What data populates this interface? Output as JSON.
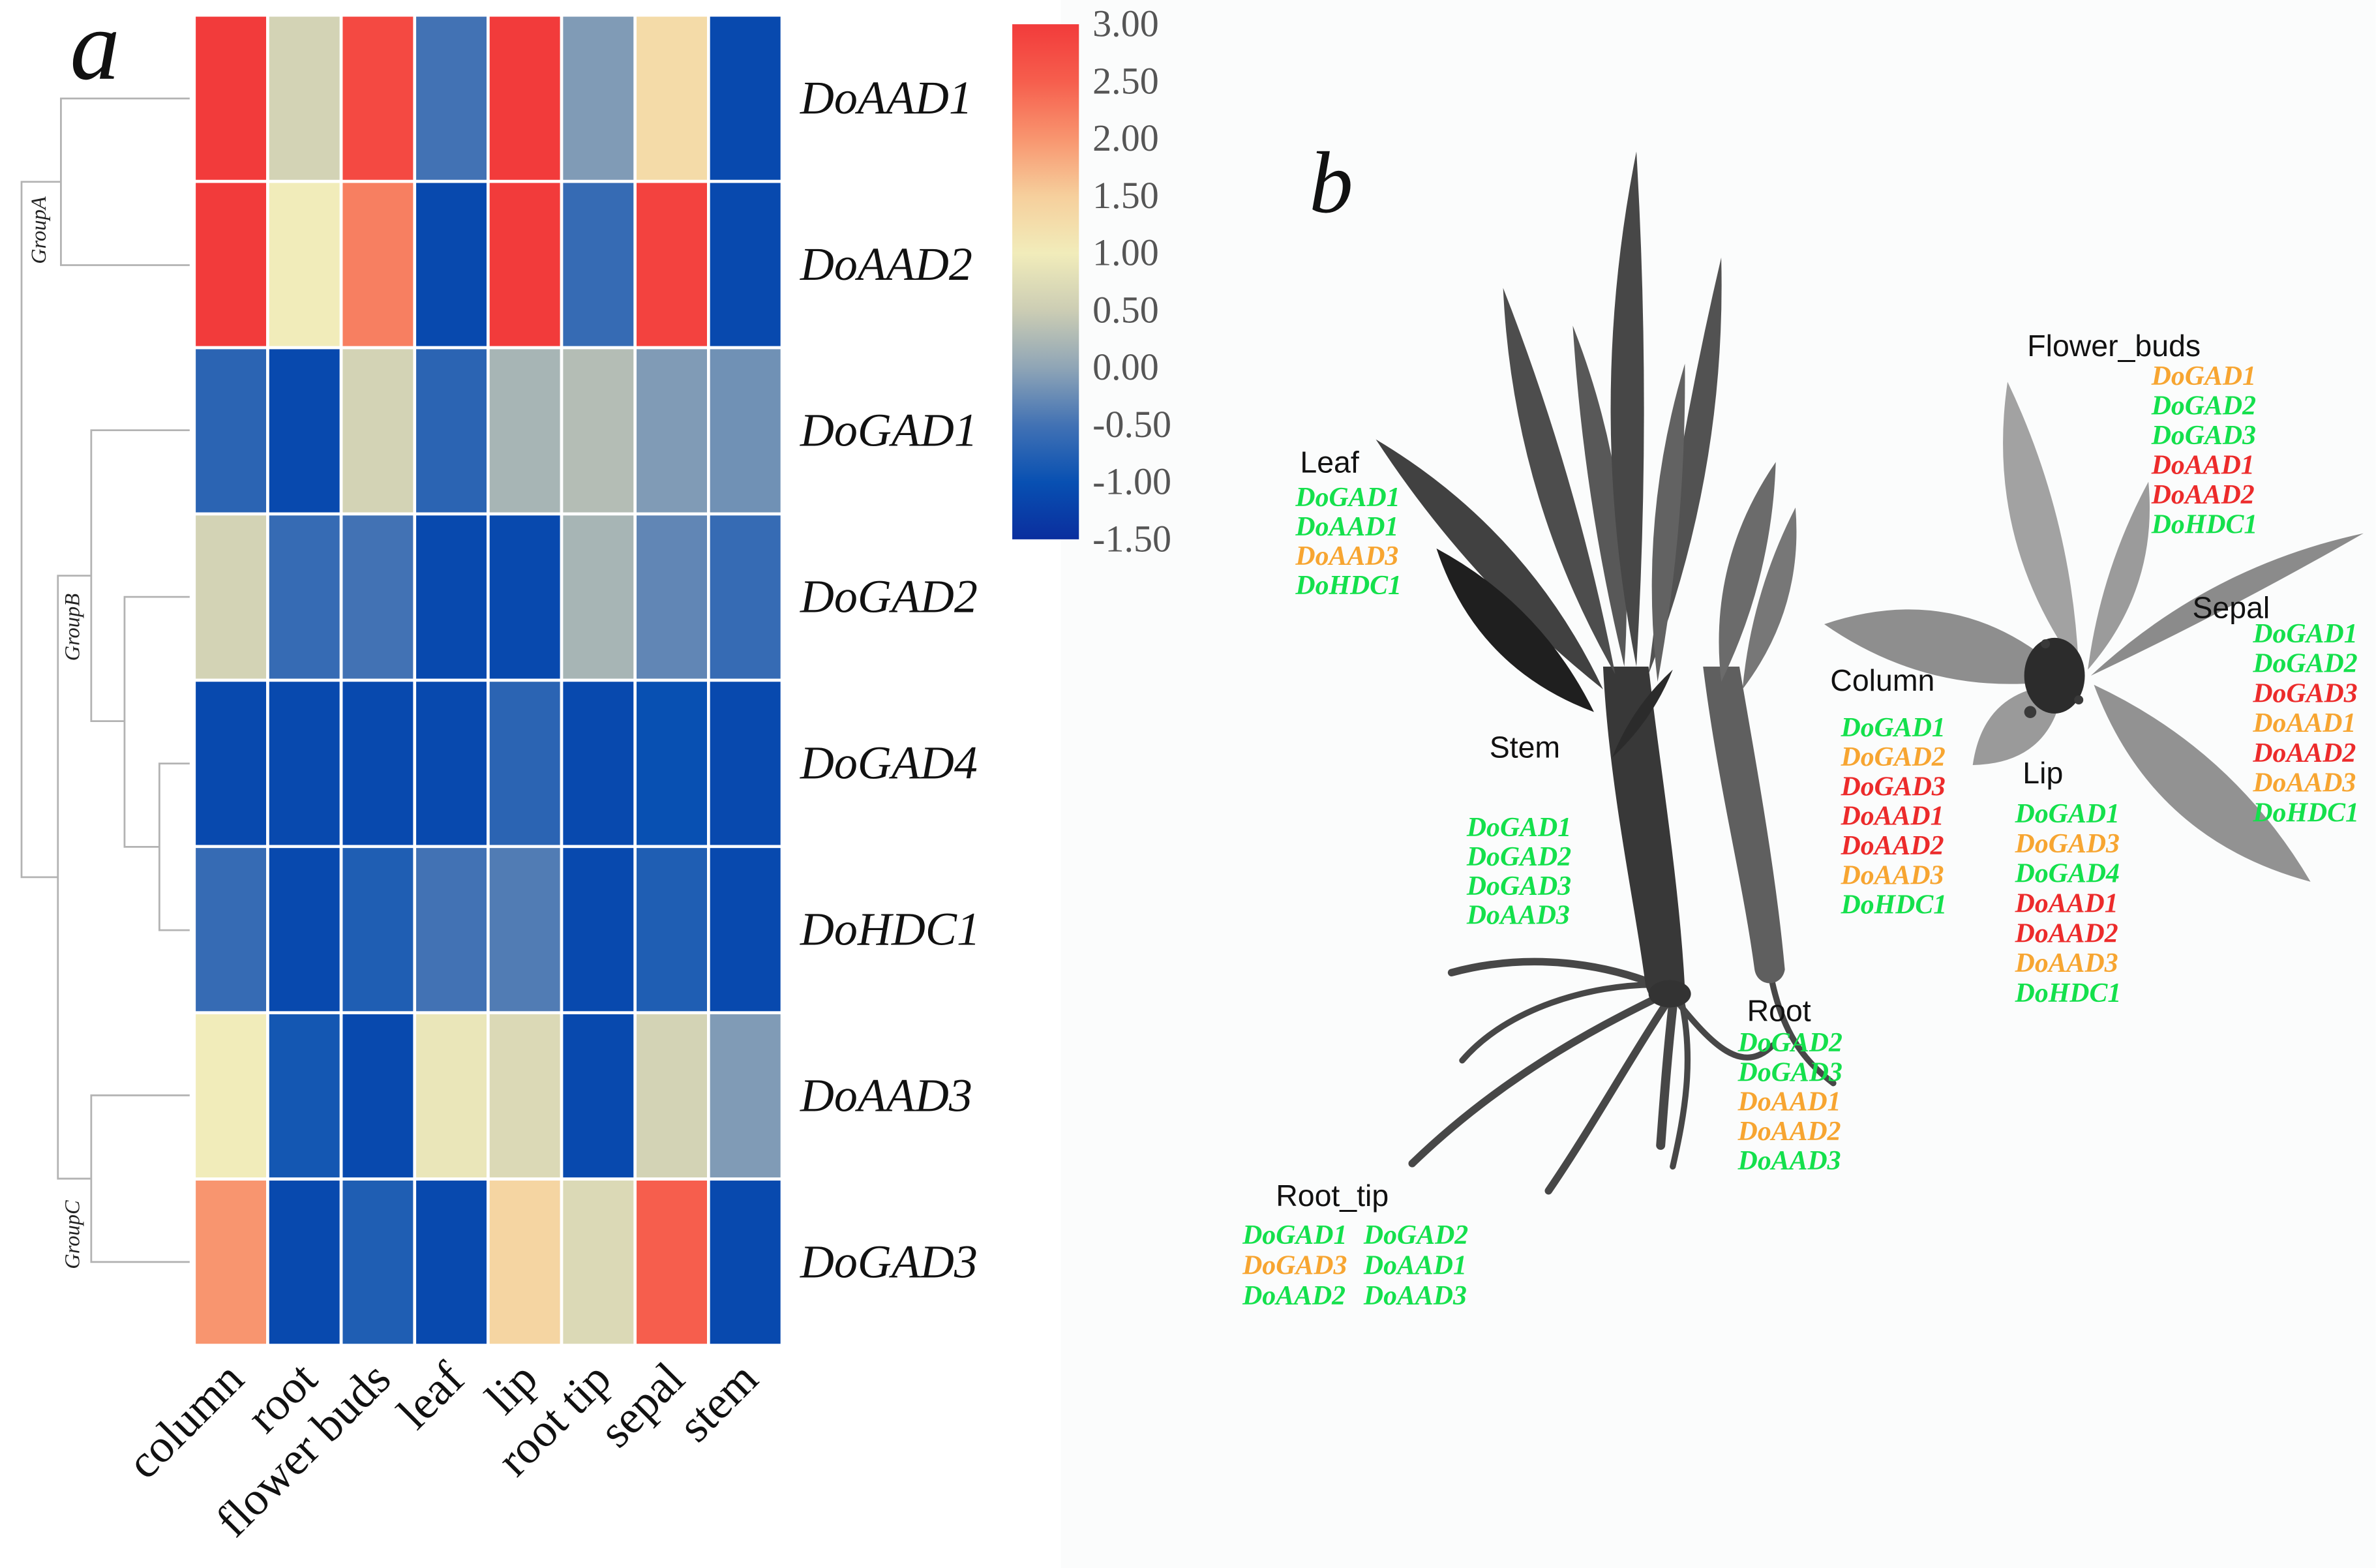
{
  "figure": {
    "panel_a_label": "a",
    "panel_b_label": "b"
  },
  "chart_data": {
    "type": "heatmap",
    "rows": [
      "DoAAD1",
      "DoAAD2",
      "DoGAD1",
      "DoGAD2",
      "DoGAD4",
      "DoHDC1",
      "DoAAD3",
      "DoGAD3"
    ],
    "columns": [
      "column",
      "root",
      "flower buds",
      "leaf",
      "lip",
      "root tip",
      "sepal",
      "stem"
    ],
    "values": [
      [
        3.0,
        0.6,
        2.8,
        -0.5,
        3.0,
        -0.1,
        1.3,
        -1.1
      ],
      [
        3.0,
        1.0,
        2.2,
        -1.1,
        3.0,
        -0.6,
        2.9,
        -1.1
      ],
      [
        -0.7,
        -1.1,
        0.6,
        -0.7,
        0.2,
        0.3,
        -0.1,
        -0.2
      ],
      [
        0.6,
        -0.6,
        -0.5,
        -1.1,
        -1.1,
        0.2,
        -0.3,
        -0.6
      ],
      [
        -1.1,
        -1.1,
        -1.1,
        -1.1,
        -0.7,
        -1.1,
        -1.0,
        -1.1
      ],
      [
        -0.6,
        -1.1,
        -0.8,
        -0.5,
        -0.4,
        -1.1,
        -0.8,
        -1.1
      ],
      [
        1.0,
        -0.9,
        -1.1,
        0.9,
        0.7,
        -1.1,
        0.6,
        -0.1
      ],
      [
        2.0,
        -1.1,
        -0.8,
        -1.1,
        1.4,
        0.7,
        2.5,
        -1.1
      ]
    ],
    "row_groups": [
      {
        "name": "GroupA",
        "row_count": 2
      },
      {
        "name": "GroupB",
        "row_count": 4
      },
      {
        "name": "GroupC",
        "row_count": 2
      }
    ],
    "legend_position": "right",
    "colorbar": {
      "range": [
        -1.5,
        3.0
      ],
      "tick_labels": [
        "3.00",
        "2.50",
        "2.00",
        "1.50",
        "1.00",
        "0.50",
        "0.00",
        "-0.50",
        "-1.00",
        "-1.50"
      ],
      "stops": [
        {
          "value": -1.5,
          "color": "#0a2e9e"
        },
        {
          "value": -1.0,
          "color": "#0850b2"
        },
        {
          "value": -0.5,
          "color": "#4272b4"
        },
        {
          "value": 0.0,
          "color": "#8fa5b6"
        },
        {
          "value": 0.5,
          "color": "#cccdb4"
        },
        {
          "value": 1.0,
          "color": "#f1ecba"
        },
        {
          "value": 1.5,
          "color": "#f6cf9c"
        },
        {
          "value": 2.0,
          "color": "#f8956f"
        },
        {
          "value": 2.5,
          "color": "#f65e4d"
        },
        {
          "value": 3.0,
          "color": "#f23b3b"
        }
      ]
    }
  },
  "tissue_map": {
    "tissues": [
      {
        "name": "Leaf",
        "genes": [
          {
            "name": "DoGAD1",
            "color": "#14e04c"
          },
          {
            "name": "DoAAD1",
            "color": "#14e04c"
          },
          {
            "name": "DoAAD3",
            "color": "#f7a531"
          },
          {
            "name": "DoHDC1",
            "color": "#14e04c"
          }
        ]
      },
      {
        "name": "Stem",
        "genes": [
          {
            "name": "DoGAD1",
            "color": "#14e04c"
          },
          {
            "name": "DoGAD2",
            "color": "#14e04c"
          },
          {
            "name": "DoGAD3",
            "color": "#14e04c"
          },
          {
            "name": "DoAAD3",
            "color": "#14e04c"
          }
        ]
      },
      {
        "name": "Root",
        "genes": [
          {
            "name": "DoGAD2",
            "color": "#14e04c"
          },
          {
            "name": "DoGAD3",
            "color": "#14e04c"
          },
          {
            "name": "DoAAD1",
            "color": "#f7a531"
          },
          {
            "name": "DoAAD2",
            "color": "#f7a531"
          },
          {
            "name": "DoAAD3",
            "color": "#14e04c"
          }
        ]
      },
      {
        "name": "Root_tip",
        "genes": [
          {
            "name": "DoGAD1",
            "color": "#14e04c"
          },
          {
            "name": "DoGAD2",
            "color": "#14e04c"
          },
          {
            "name": "DoGAD3",
            "color": "#f7a531"
          },
          {
            "name": "DoAAD1",
            "color": "#14e04c"
          },
          {
            "name": "DoAAD2",
            "color": "#14e04c"
          },
          {
            "name": "DoAAD3",
            "color": "#14e04c"
          }
        ]
      },
      {
        "name": "Flower_buds",
        "genes": [
          {
            "name": "DoGAD1",
            "color": "#f7a531"
          },
          {
            "name": "DoGAD2",
            "color": "#14e04c"
          },
          {
            "name": "DoGAD3",
            "color": "#14e04c"
          },
          {
            "name": "DoAAD1",
            "color": "#ec2b2b"
          },
          {
            "name": "DoAAD2",
            "color": "#ec2b2b"
          },
          {
            "name": "DoHDC1",
            "color": "#14e04c"
          }
        ]
      },
      {
        "name": "Column",
        "genes": [
          {
            "name": "DoGAD1",
            "color": "#14e04c"
          },
          {
            "name": "DoGAD2",
            "color": "#f7a531"
          },
          {
            "name": "DoGAD3",
            "color": "#ec2b2b"
          },
          {
            "name": "DoAAD1",
            "color": "#ec2b2b"
          },
          {
            "name": "DoAAD2",
            "color": "#ec2b2b"
          },
          {
            "name": "DoAAD3",
            "color": "#f7a531"
          },
          {
            "name": "DoHDC1",
            "color": "#14e04c"
          }
        ]
      },
      {
        "name": "Lip",
        "genes": [
          {
            "name": "DoGAD1",
            "color": "#14e04c"
          },
          {
            "name": "DoGAD3",
            "color": "#f7a531"
          },
          {
            "name": "DoGAD4",
            "color": "#14e04c"
          },
          {
            "name": "DoAAD1",
            "color": "#ec2b2b"
          },
          {
            "name": "DoAAD2",
            "color": "#ec2b2b"
          },
          {
            "name": "DoAAD3",
            "color": "#f7a531"
          },
          {
            "name": "DoHDC1",
            "color": "#14e04c"
          }
        ]
      },
      {
        "name": "Sepal",
        "genes": [
          {
            "name": "DoGAD1",
            "color": "#14e04c"
          },
          {
            "name": "DoGAD2",
            "color": "#14e04c"
          },
          {
            "name": "DoGAD3",
            "color": "#ec2b2b"
          },
          {
            "name": "DoAAD1",
            "color": "#f7a531"
          },
          {
            "name": "DoAAD2",
            "color": "#ec2b2b"
          },
          {
            "name": "DoAAD3",
            "color": "#f7a531"
          },
          {
            "name": "DoHDC1",
            "color": "#14e04c"
          }
        ]
      }
    ]
  }
}
